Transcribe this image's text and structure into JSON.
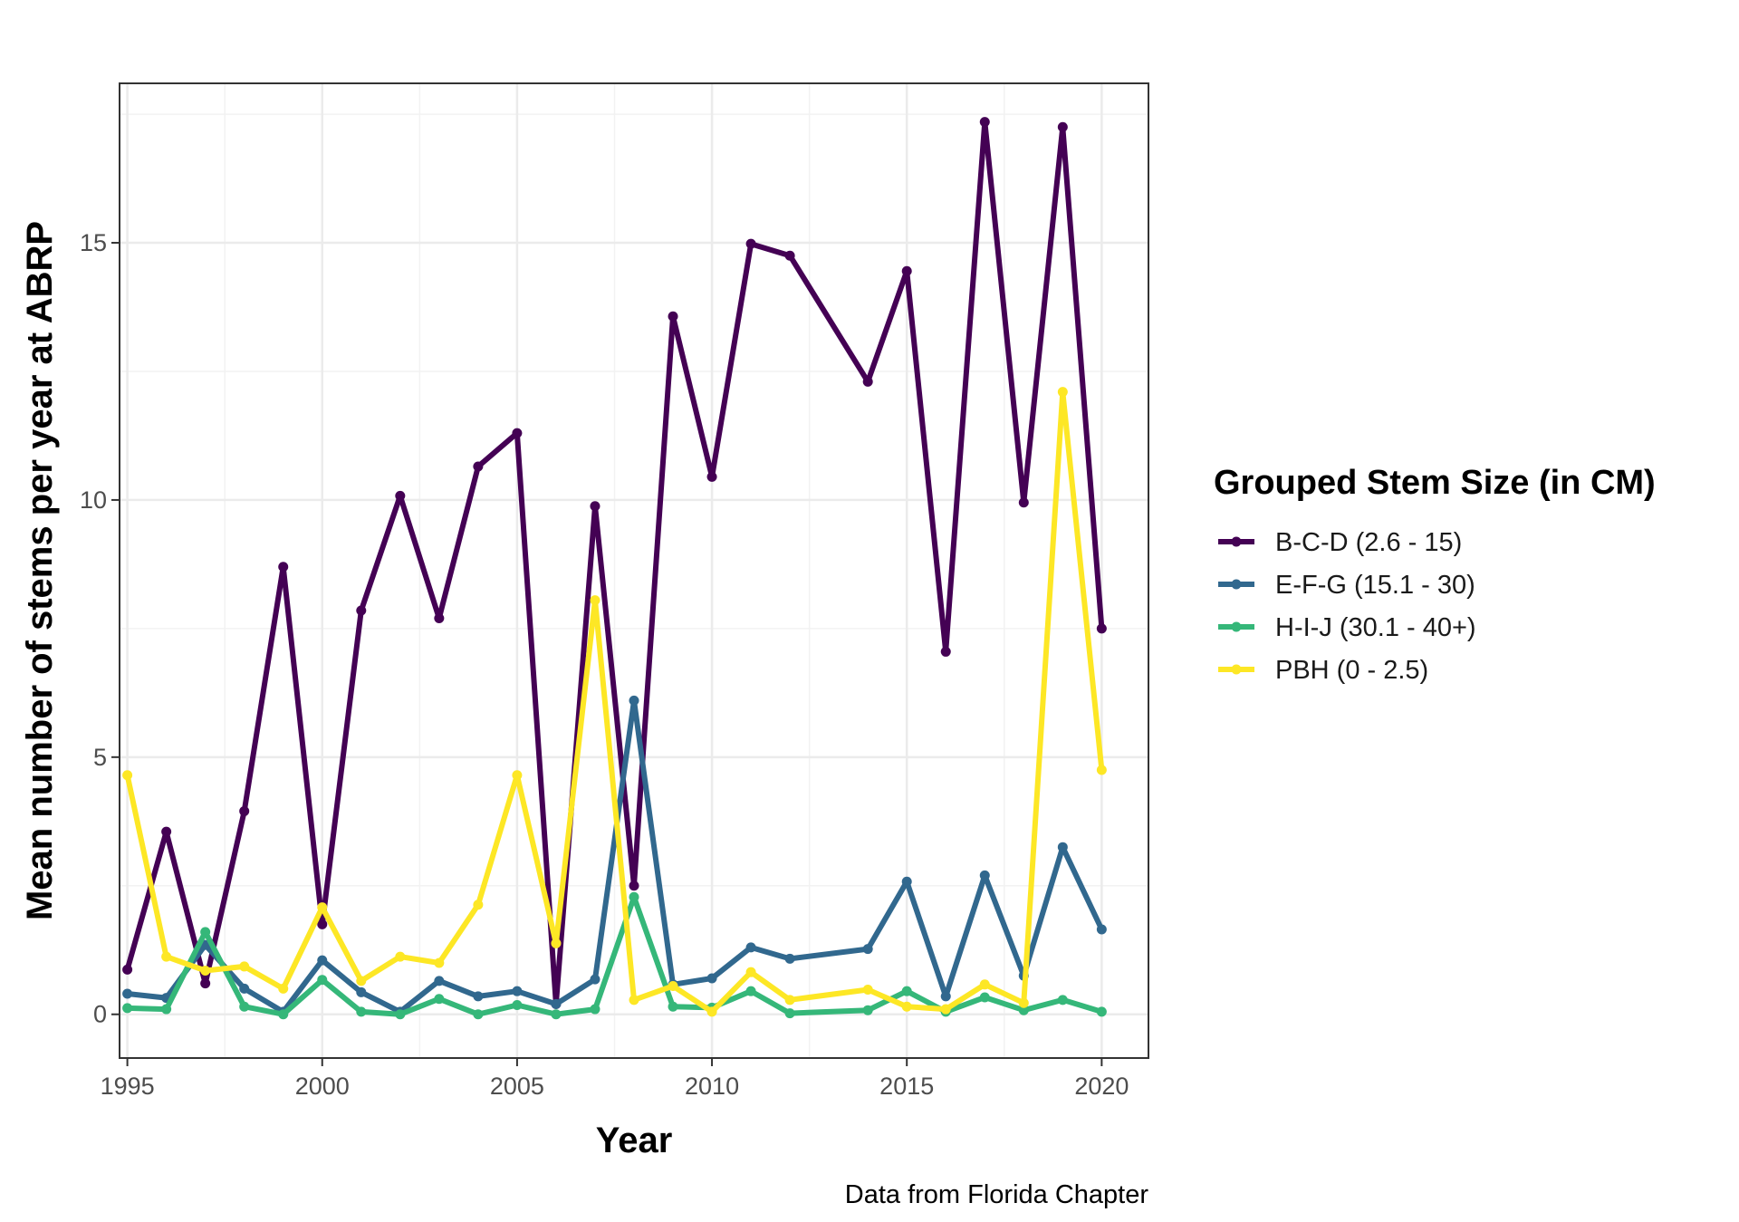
{
  "chart_data": {
    "type": "line",
    "xlabel": "Year",
    "ylabel": "Mean number of stems per year at ABRP",
    "caption": "Data from Florida Chapter",
    "xlim": [
      1994.8,
      2021.2
    ],
    "ylim": [
      -0.85,
      18.1
    ],
    "x_ticks": [
      1995,
      2000,
      2005,
      2010,
      2015,
      2020
    ],
    "y_ticks": [
      0,
      5,
      10,
      15
    ],
    "grid": true,
    "legend": {
      "title": "Grouped Stem Size (in CM)",
      "position": "right"
    },
    "series": [
      {
        "name": "B-C-D (2.6 - 15)",
        "color": "#440154",
        "points": [
          [
            1995,
            0.87
          ],
          [
            1996,
            3.55
          ],
          [
            1997,
            0.6
          ],
          [
            1998,
            3.95
          ],
          [
            1999,
            8.7
          ],
          [
            2000,
            1.75
          ],
          [
            2001,
            7.85
          ],
          [
            2002,
            10.08
          ],
          [
            2003,
            7.7
          ],
          [
            2004,
            10.65
          ],
          [
            2005,
            11.3
          ],
          [
            2006,
            0.2
          ],
          [
            2007,
            9.88
          ],
          [
            2008,
            2.5
          ],
          [
            2009,
            13.57
          ],
          [
            2010,
            10.45
          ],
          [
            2011,
            14.98
          ],
          [
            2012,
            14.75
          ],
          [
            2014,
            12.3
          ],
          [
            2015,
            14.45
          ],
          [
            2016,
            7.05
          ],
          [
            2017,
            17.35
          ],
          [
            2018,
            9.95
          ],
          [
            2019,
            17.25
          ],
          [
            2020,
            7.5
          ]
        ]
      },
      {
        "name": "E-F-G (15.1 - 30)",
        "color": "#31688E",
        "points": [
          [
            1995,
            0.4
          ],
          [
            1996,
            0.32
          ],
          [
            1997,
            1.35
          ],
          [
            1998,
            0.5
          ],
          [
            1999,
            0.05
          ],
          [
            2000,
            1.05
          ],
          [
            2001,
            0.43
          ],
          [
            2002,
            0.05
          ],
          [
            2003,
            0.65
          ],
          [
            2004,
            0.35
          ],
          [
            2005,
            0.45
          ],
          [
            2006,
            0.2
          ],
          [
            2007,
            0.68
          ],
          [
            2008,
            6.1
          ],
          [
            2009,
            0.58
          ],
          [
            2010,
            0.7
          ],
          [
            2011,
            1.3
          ],
          [
            2012,
            1.08
          ],
          [
            2014,
            1.27
          ],
          [
            2015,
            2.58
          ],
          [
            2016,
            0.35
          ],
          [
            2017,
            2.7
          ],
          [
            2018,
            0.75
          ],
          [
            2019,
            3.25
          ],
          [
            2020,
            1.65
          ]
        ]
      },
      {
        "name": "H-I-J (30.1 - 40+)",
        "color": "#35B779",
        "points": [
          [
            1995,
            0.12
          ],
          [
            1996,
            0.1
          ],
          [
            1997,
            1.6
          ],
          [
            1998,
            0.15
          ],
          [
            1999,
            0.0
          ],
          [
            2000,
            0.67
          ],
          [
            2001,
            0.05
          ],
          [
            2002,
            0.0
          ],
          [
            2003,
            0.3
          ],
          [
            2004,
            0.0
          ],
          [
            2005,
            0.18
          ],
          [
            2006,
            0.0
          ],
          [
            2007,
            0.1
          ],
          [
            2008,
            2.28
          ],
          [
            2009,
            0.15
          ],
          [
            2010,
            0.13
          ],
          [
            2011,
            0.45
          ],
          [
            2012,
            0.02
          ],
          [
            2014,
            0.08
          ],
          [
            2015,
            0.45
          ],
          [
            2016,
            0.05
          ],
          [
            2017,
            0.33
          ],
          [
            2018,
            0.08
          ],
          [
            2019,
            0.28
          ],
          [
            2020,
            0.05
          ]
        ]
      },
      {
        "name": "PBH (0 - 2.5)",
        "color": "#FDE725",
        "points": [
          [
            1995,
            4.65
          ],
          [
            1996,
            1.12
          ],
          [
            1997,
            0.85
          ],
          [
            1998,
            0.93
          ],
          [
            1999,
            0.5
          ],
          [
            2000,
            2.08
          ],
          [
            2001,
            0.65
          ],
          [
            2002,
            1.12
          ],
          [
            2003,
            1.0
          ],
          [
            2004,
            2.13
          ],
          [
            2005,
            4.65
          ],
          [
            2006,
            1.38
          ],
          [
            2007,
            8.05
          ],
          [
            2008,
            0.28
          ],
          [
            2009,
            0.55
          ],
          [
            2010,
            0.05
          ],
          [
            2011,
            0.82
          ],
          [
            2012,
            0.28
          ],
          [
            2014,
            0.48
          ],
          [
            2015,
            0.15
          ],
          [
            2016,
            0.1
          ],
          [
            2017,
            0.58
          ],
          [
            2018,
            0.22
          ],
          [
            2019,
            12.1
          ],
          [
            2020,
            4.75
          ]
        ]
      }
    ]
  }
}
